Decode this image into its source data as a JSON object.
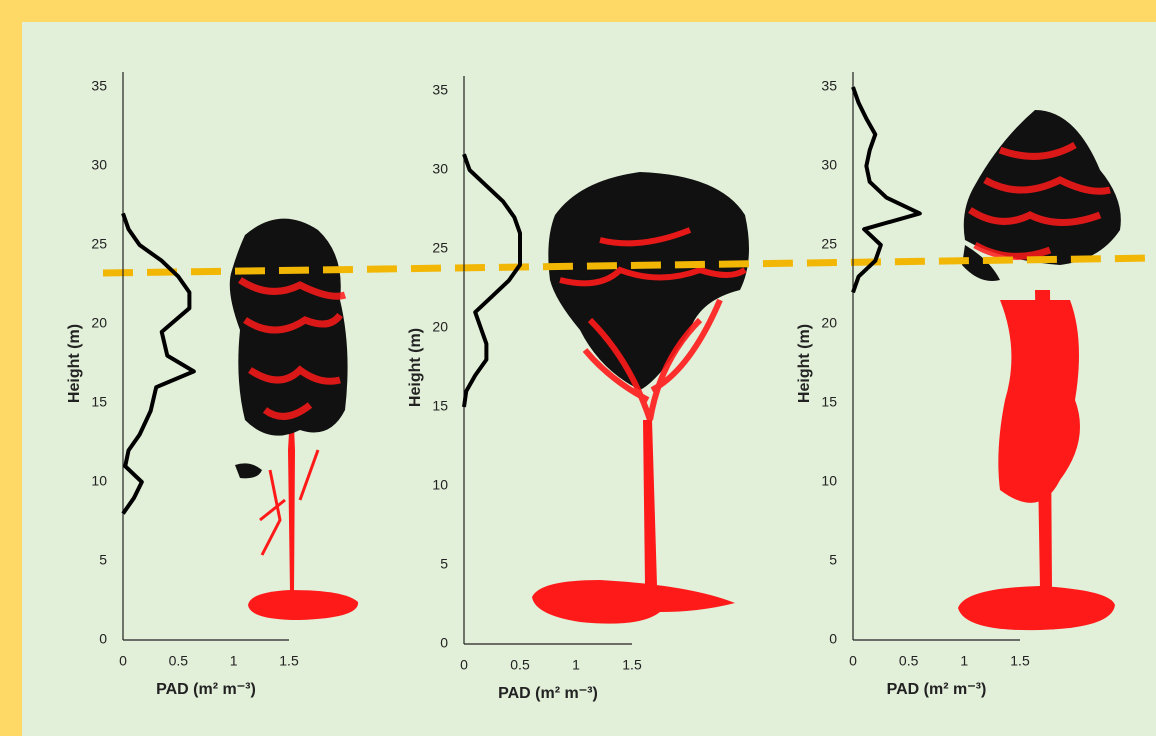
{
  "chart_data": [
    {
      "type": "line",
      "x_label": "PAD (m² m⁻³)",
      "y_label": "Height (m)",
      "color": "#000000",
      "x": [
        0,
        0.1,
        0.17,
        0.02,
        0.05,
        0.15,
        0.25,
        0.3,
        0.64,
        0.4,
        0.35,
        0.6,
        0.6,
        0.5,
        0.35,
        0.15,
        0.05,
        0
      ],
      "values": [
        8,
        9,
        10,
        11,
        12,
        13,
        14.5,
        16,
        17,
        18,
        19.5,
        21,
        22,
        23,
        24,
        25,
        26,
        27
      ],
      "xlim": [
        0,
        1.5
      ],
      "ylim": [
        0,
        35
      ],
      "xticks": [
        0,
        0.5,
        1,
        1.5
      ],
      "yticks": [
        0,
        5,
        10,
        15,
        20,
        25,
        30,
        35
      ]
    },
    {
      "type": "line",
      "x_label": "PAD (m² m⁻³)",
      "y_label": "Height (m)",
      "color": "#000000",
      "x": [
        0,
        0.02,
        0.1,
        0.2,
        0.2,
        0.15,
        0.1,
        0.25,
        0.4,
        0.5,
        0.5,
        0.5,
        0.45,
        0.35,
        0.2,
        0.05,
        0
      ],
      "values": [
        15,
        16,
        17,
        18,
        19,
        20,
        21,
        22,
        23,
        24,
        25,
        26,
        27,
        28,
        29,
        30,
        31
      ],
      "xlim": [
        0,
        1.5
      ],
      "ylim": [
        0,
        35
      ],
      "xticks": [
        0,
        0.5,
        1,
        1.5
      ],
      "yticks": [
        0,
        5,
        10,
        15,
        20,
        25,
        30,
        35
      ]
    },
    {
      "type": "line",
      "x_label": "PAD (m² m⁻³)",
      "y_label": "Height (m)",
      "color": "#000000",
      "x": [
        0,
        0.05,
        0.2,
        0.25,
        0.1,
        0.6,
        0.3,
        0.15,
        0.12,
        0.15,
        0.2,
        0.12,
        0.05,
        0
      ],
      "values": [
        22,
        23,
        24,
        25,
        26,
        27,
        28,
        29,
        30,
        31,
        32,
        33,
        34,
        35
      ],
      "xlim": [
        0,
        1.5
      ],
      "ylim": [
        0,
        35
      ],
      "xticks": [
        0,
        0.5,
        1,
        1.5
      ],
      "yticks": [
        0,
        5,
        10,
        15,
        20,
        25,
        30,
        35
      ]
    }
  ]
}
